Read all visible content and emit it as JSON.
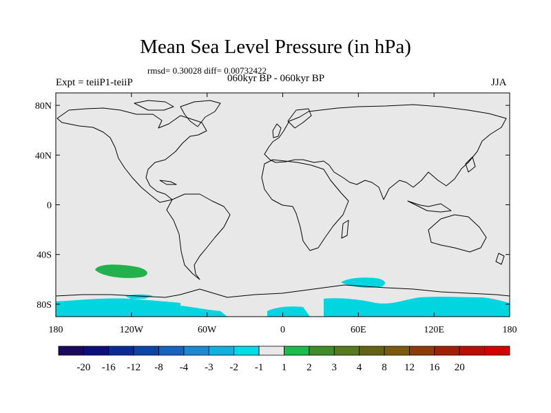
{
  "title": "Mean Sea Level Pressure (in hPa)",
  "stats_line": "rmsd= 0.30028 diff= 0.00732422",
  "period_line": "060kyr BP - 060kyr BP",
  "expt_label": "Expt = teiiP1-teiiP",
  "season_label": "JJA",
  "map": {
    "projection": "cylindrical-equidistant",
    "lon_range": [
      -180,
      180
    ],
    "lat_range": [
      -90,
      90
    ],
    "background_color": "#e8e8e8",
    "lat_ticks": [
      {
        "value": 80,
        "label": "80N"
      },
      {
        "value": 40,
        "label": "40N"
      },
      {
        "value": 0,
        "label": "0"
      },
      {
        "value": -40,
        "label": "40S"
      },
      {
        "value": -80,
        "label": "80S"
      }
    ],
    "lon_ticks": [
      {
        "value": -180,
        "label": "180"
      },
      {
        "value": -120,
        "label": "120W"
      },
      {
        "value": -60,
        "label": "60W"
      },
      {
        "value": 0,
        "label": "0"
      },
      {
        "value": 60,
        "label": "60E"
      },
      {
        "value": 120,
        "label": "120E"
      },
      {
        "value": 180,
        "label": "180"
      }
    ],
    "anomaly_regions": [
      {
        "name": "south-pacific-positive",
        "value_bin": "1 to 2",
        "color": "#22b14c"
      },
      {
        "name": "southern-ocean-negative",
        "value_bin": "-2 to -1",
        "color": "#00d5e0"
      }
    ]
  },
  "colorbar": {
    "colors": [
      "#1a0a5e",
      "#0d0f7a",
      "#0a2a96",
      "#0c45a8",
      "#1664c0",
      "#1b8ad2",
      "#13b0df",
      "#00dbe8",
      "#e8e8e8",
      "#1dbb4c",
      "#3f8c28",
      "#567a1d",
      "#646314",
      "#7a5a0d",
      "#8f3b08",
      "#9f2006",
      "#b80f05",
      "#d40000"
    ],
    "labels": [
      "-20",
      "-16",
      "-12",
      "-8",
      "-4",
      "-3",
      "-2",
      "-1",
      "1",
      "2",
      "3",
      "4",
      "8",
      "12",
      "16",
      "20"
    ]
  }
}
